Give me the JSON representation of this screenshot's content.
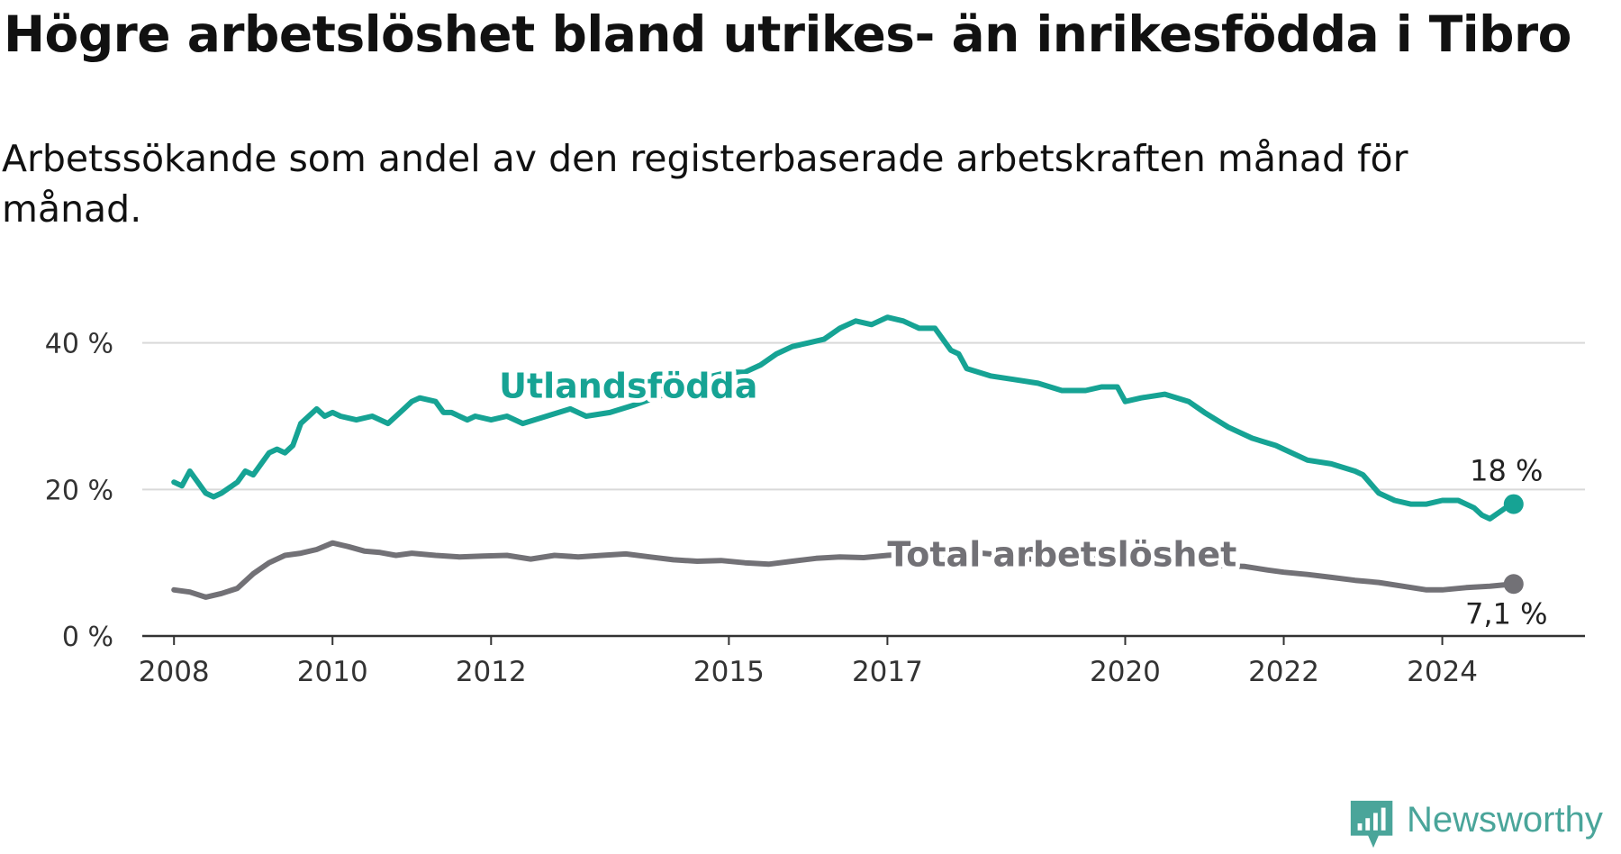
{
  "header": {
    "title": "Högre arbetslöshet bland utrikes- än inrikesfödda i Tibro",
    "subtitle": "Arbetssökande som andel av den registerbaserade arbetskraften månad för månad."
  },
  "brand": {
    "name": "Newsworthy",
    "icon": "newsworthy-logo-icon",
    "color": "#4aa59a"
  },
  "chart_data": {
    "type": "line",
    "title": "Högre arbetslöshet bland utrikes- än inrikesfödda i Tibro",
    "subtitle": "Arbetssökande som andel av den registerbaserade arbetskraften månad för månad.",
    "xlabel": "",
    "ylabel": "",
    "xlim": [
      2007.6,
      2025.8
    ],
    "ylim": [
      0,
      45
    ],
    "x_ticks": [
      {
        "value": 2008,
        "label": "2008"
      },
      {
        "value": 2010,
        "label": "2010"
      },
      {
        "value": 2012,
        "label": "2012"
      },
      {
        "value": 2015,
        "label": "2015"
      },
      {
        "value": 2017,
        "label": "2017"
      },
      {
        "value": 2020,
        "label": "2020"
      },
      {
        "value": 2022,
        "label": "2022"
      },
      {
        "value": 2024,
        "label": "2024"
      }
    ],
    "y_ticks": [
      {
        "value": 0,
        "label": "0 %"
      },
      {
        "value": 20,
        "label": "20 %"
      },
      {
        "value": 40,
        "label": "40 %"
      }
    ],
    "grid": true,
    "series": [
      {
        "name": "Utlandsfödda",
        "color": "#16a394",
        "end_label": "18 %",
        "x": [
          2008.0,
          2008.1,
          2008.2,
          2008.4,
          2008.5,
          2008.6,
          2008.8,
          2008.9,
          2009.0,
          2009.1,
          2009.2,
          2009.3,
          2009.4,
          2009.5,
          2009.6,
          2009.8,
          2009.9,
          2010.0,
          2010.1,
          2010.3,
          2010.5,
          2010.7,
          2010.9,
          2011.0,
          2011.1,
          2011.3,
          2011.4,
          2011.5,
          2011.7,
          2011.8,
          2012.0,
          2012.2,
          2012.4,
          2012.7,
          2013.0,
          2013.2,
          2013.5,
          2013.8,
          2014.2,
          2014.5,
          2014.8,
          2015.0,
          2015.2,
          2015.4,
          2015.6,
          2015.8,
          2016.0,
          2016.2,
          2016.4,
          2016.6,
          2016.8,
          2017.0,
          2017.2,
          2017.4,
          2017.6,
          2017.8,
          2017.9,
          2018.0,
          2018.3,
          2018.6,
          2018.9,
          2019.2,
          2019.5,
          2019.7,
          2019.9,
          2020.0,
          2020.2,
          2020.5,
          2020.8,
          2021.0,
          2021.3,
          2021.6,
          2021.9,
          2022.0,
          2022.3,
          2022.6,
          2022.9,
          2023.0,
          2023.2,
          2023.4,
          2023.6,
          2023.8,
          2024.0,
          2024.2,
          2024.4,
          2024.5,
          2024.6,
          2024.8,
          2024.9
        ],
        "y": [
          21.0,
          20.5,
          22.5,
          19.5,
          19.0,
          19.5,
          21.0,
          22.5,
          22.0,
          23.5,
          25.0,
          25.5,
          25.0,
          26.0,
          29.0,
          31.0,
          30.0,
          30.5,
          30.0,
          29.5,
          30.0,
          29.0,
          31.0,
          32.0,
          32.5,
          32.0,
          30.5,
          30.5,
          29.5,
          30.0,
          29.5,
          30.0,
          29.0,
          30.0,
          31.0,
          30.0,
          30.5,
          31.5,
          33.0,
          34.5,
          35.5,
          36.0,
          36.0,
          37.0,
          38.5,
          39.5,
          40.0,
          40.5,
          42.0,
          43.0,
          42.5,
          43.5,
          43.0,
          42.0,
          42.0,
          39.0,
          38.5,
          36.5,
          35.5,
          35.0,
          34.5,
          33.5,
          33.5,
          34.0,
          34.0,
          32.0,
          32.5,
          33.0,
          32.0,
          30.5,
          28.5,
          27.0,
          26.0,
          25.5,
          24.0,
          23.5,
          22.5,
          22.0,
          19.5,
          18.5,
          18.0,
          18.0,
          18.5,
          18.5,
          17.5,
          16.5,
          16.0,
          17.5,
          18.0
        ]
      },
      {
        "name": "Total arbetslöshet",
        "color": "#727176",
        "end_label": "7,1 %",
        "x": [
          2008.0,
          2008.2,
          2008.4,
          2008.6,
          2008.8,
          2009.0,
          2009.2,
          2009.4,
          2009.6,
          2009.8,
          2010.0,
          2010.2,
          2010.4,
          2010.6,
          2010.8,
          2011.0,
          2011.3,
          2011.6,
          2011.9,
          2012.2,
          2012.5,
          2012.8,
          2013.1,
          2013.4,
          2013.7,
          2014.0,
          2014.3,
          2014.6,
          2014.9,
          2015.2,
          2015.5,
          2015.8,
          2016.1,
          2016.4,
          2016.7,
          2017.0,
          2017.3,
          2017.6,
          2017.9,
          2018.2,
          2018.5,
          2018.8,
          2019.1,
          2019.4,
          2019.7,
          2020.0,
          2020.3,
          2020.6,
          2020.9,
          2021.2,
          2021.5,
          2021.8,
          2022.0,
          2022.3,
          2022.6,
          2022.9,
          2023.2,
          2023.5,
          2023.8,
          2024.0,
          2024.3,
          2024.6,
          2024.9
        ],
        "y": [
          6.3,
          6.0,
          5.3,
          5.8,
          6.5,
          8.5,
          10.0,
          11.0,
          11.3,
          11.8,
          12.7,
          12.2,
          11.6,
          11.4,
          11.0,
          11.3,
          11.0,
          10.8,
          10.9,
          11.0,
          10.5,
          11.0,
          10.8,
          11.0,
          11.2,
          10.8,
          10.4,
          10.2,
          10.3,
          10.0,
          9.8,
          10.2,
          10.6,
          10.8,
          10.7,
          11.0,
          11.2,
          11.2,
          11.0,
          11.3,
          11.0,
          10.5,
          10.3,
          10.6,
          10.7,
          10.2,
          10.0,
          10.1,
          9.8,
          9.6,
          9.5,
          9.0,
          8.7,
          8.4,
          8.0,
          7.6,
          7.3,
          6.8,
          6.3,
          6.3,
          6.6,
          6.8,
          7.1
        ]
      }
    ],
    "labels": [
      {
        "text": "Utlandsfödda",
        "x": 2012.1,
        "y": 32.5,
        "series": 0
      },
      {
        "text": "Total arbetslöshet",
        "x": 2017.0,
        "y": 9.5,
        "series": 1
      }
    ]
  }
}
